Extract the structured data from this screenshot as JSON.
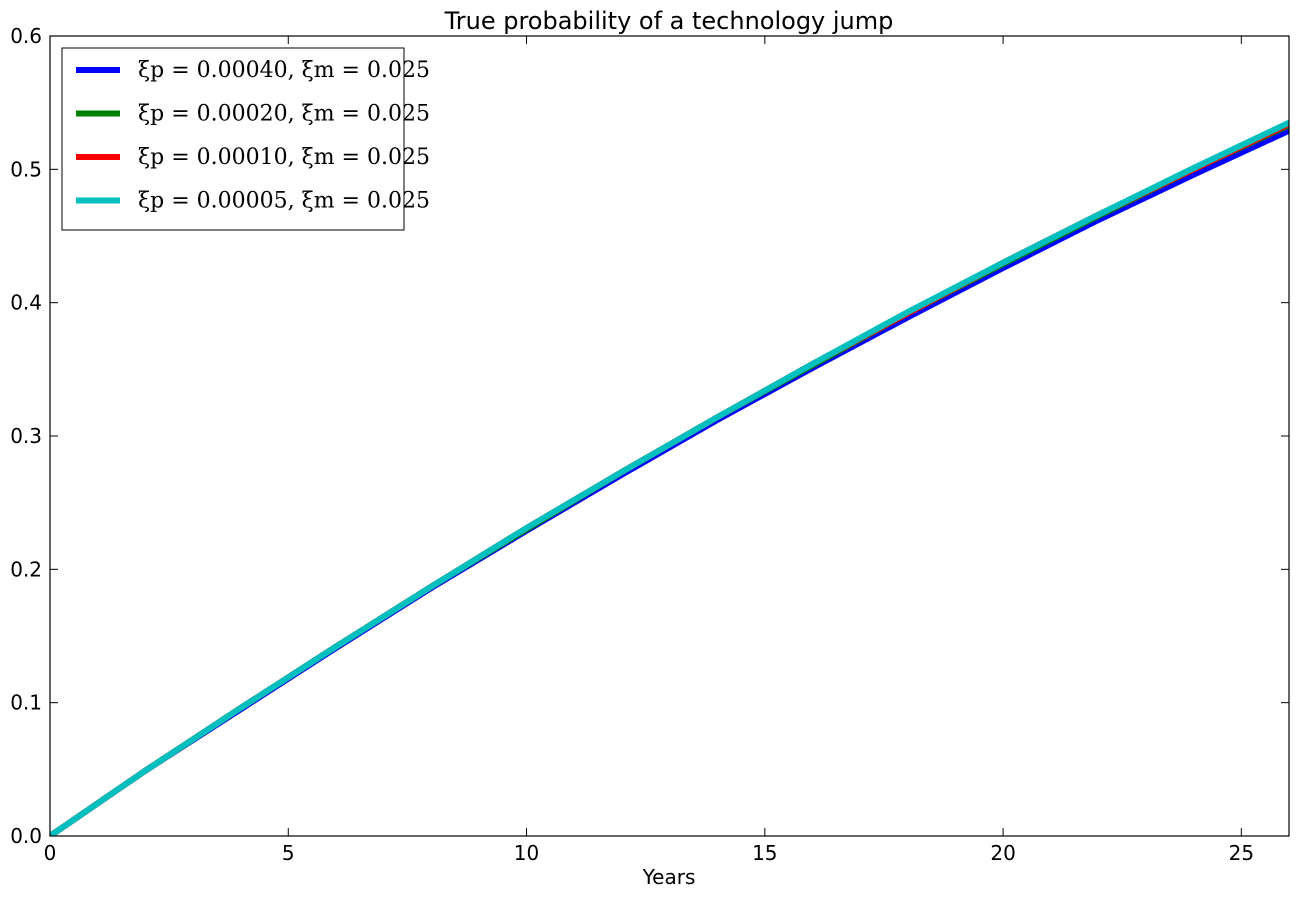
{
  "chart_data": {
    "type": "line",
    "title": "True probability of a technology jump",
    "xlabel": "Years",
    "ylabel": "",
    "xlim": [
      0,
      26
    ],
    "ylim": [
      0,
      0.6
    ],
    "x_ticks": [
      0,
      5,
      10,
      15,
      20,
      25
    ],
    "x_tick_labels": [
      "0",
      "5",
      "10",
      "15",
      "20",
      "25"
    ],
    "y_ticks": [
      0,
      0.1,
      0.2,
      0.3,
      0.4,
      0.5,
      0.6
    ],
    "y_tick_labels": [
      "0.0",
      "0.1",
      "0.2",
      "0.3",
      "0.4",
      "0.5",
      "0.6"
    ],
    "grid": false,
    "legend_position": "top-left",
    "x": [
      0,
      2,
      4,
      6,
      8,
      10,
      12,
      14,
      16,
      18,
      20,
      22,
      24,
      26
    ],
    "series": [
      {
        "name": "ξp = 0.00040, ξm = 0.025",
        "color": "#0000ff",
        "values": [
          0.0,
          0.049,
          0.095,
          0.141,
          0.186,
          0.229,
          0.271,
          0.312,
          0.351,
          0.389,
          0.426,
          0.462,
          0.496,
          0.529
        ]
      },
      {
        "name": "ξp = 0.00020, ξm = 0.025",
        "color": "#008000",
        "values": [
          0.0,
          0.049,
          0.096,
          0.142,
          0.187,
          0.23,
          0.273,
          0.314,
          0.353,
          0.392,
          0.429,
          0.465,
          0.5,
          0.533
        ]
      },
      {
        "name": "ξp = 0.00010, ξm = 0.025",
        "color": "#ff0000",
        "values": [
          0.0,
          0.049,
          0.096,
          0.142,
          0.187,
          0.231,
          0.273,
          0.314,
          0.354,
          0.392,
          0.43,
          0.466,
          0.5,
          0.534
        ]
      },
      {
        "name": "ξp = 0.00005, ξm = 0.025",
        "color": "#00bfbf",
        "values": [
          0.0,
          0.049,
          0.096,
          0.142,
          0.187,
          0.231,
          0.273,
          0.314,
          0.354,
          0.393,
          0.43,
          0.466,
          0.501,
          0.535
        ]
      }
    ]
  }
}
